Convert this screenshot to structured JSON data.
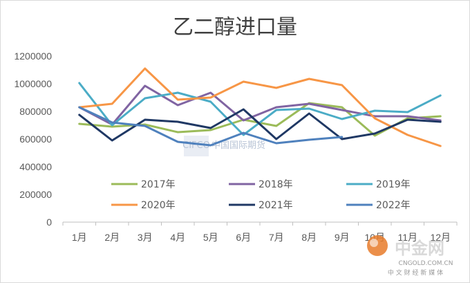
{
  "chart_data": {
    "type": "line",
    "title": "乙二醇进口量",
    "xlabel": "",
    "ylabel": "",
    "categories": [
      "1月",
      "2月",
      "3月",
      "4月",
      "5月",
      "6月",
      "7月",
      "8月",
      "9月",
      "10月",
      "11月",
      "12月"
    ],
    "ylim": [
      0,
      1200000
    ],
    "yticks": [
      0,
      200000,
      400000,
      600000,
      800000,
      1000000,
      1200000
    ],
    "ytick_labels": [
      "0",
      "200000",
      "400000",
      "600000",
      "800000",
      "1000000",
      "1200000"
    ],
    "grid": false,
    "legend": "bottom-in-plot",
    "series": [
      {
        "name": "2017年",
        "color": "#9bbb59",
        "values": [
          710000,
          690000,
          705000,
          650000,
          665000,
          740000,
          695000,
          860000,
          830000,
          625000,
          750000,
          765000
        ]
      },
      {
        "name": "2018年",
        "color": "#8064a2",
        "values": [
          830000,
          705000,
          985000,
          845000,
          935000,
          735000,
          830000,
          855000,
          810000,
          765000,
          765000,
          735000
        ]
      },
      {
        "name": "2019年",
        "color": "#4bacc6",
        "values": [
          1005000,
          700000,
          895000,
          935000,
          870000,
          630000,
          810000,
          820000,
          745000,
          805000,
          795000,
          915000
        ]
      },
      {
        "name": "2020年",
        "color": "#f79646",
        "values": [
          830000,
          855000,
          1110000,
          885000,
          900000,
          1015000,
          970000,
          1035000,
          990000,
          750000,
          630000,
          550000
        ]
      },
      {
        "name": "2021年",
        "color": "#1f3864",
        "values": [
          775000,
          590000,
          740000,
          725000,
          680000,
          815000,
          600000,
          785000,
          600000,
          640000,
          740000,
          725000
        ]
      },
      {
        "name": "2022年",
        "color": "#4f81bd",
        "values": [
          830000,
          720000,
          695000,
          580000,
          555000,
          645000,
          570000,
          595000,
          615000,
          null,
          null,
          null
        ]
      }
    ]
  },
  "watermark": {
    "text": "中国国际期货",
    "badge": "CIFCO"
  },
  "logo": {
    "name": "中金网",
    "domain": "CNGOLD.COM.CN",
    "tagline": "中 文 财 经 新 媒 体"
  }
}
